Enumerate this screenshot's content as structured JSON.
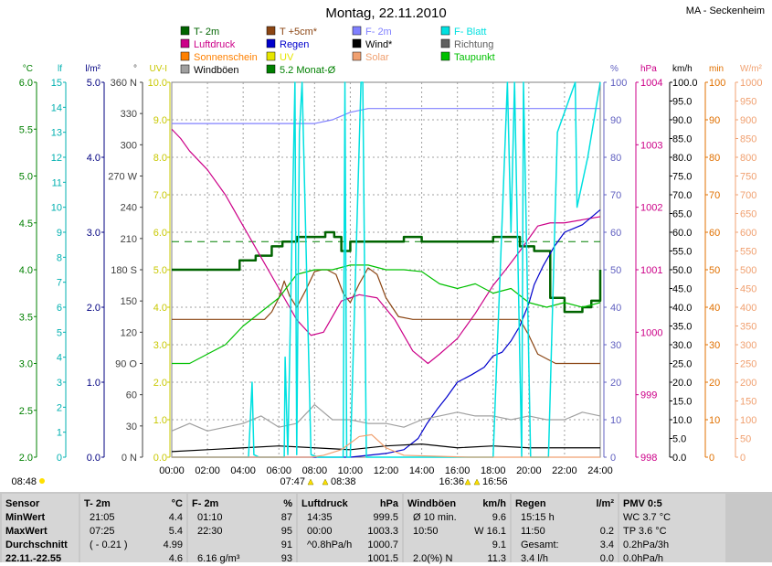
{
  "title": "Montag, 22.11.2010",
  "station": "MA - Seckenheim",
  "legend": [
    {
      "label": "T- 2m",
      "color": "#006400"
    },
    {
      "label": "T +5cm*",
      "color": "#8b4513"
    },
    {
      "label": "F- 2m",
      "color": "#8080ff"
    },
    {
      "label": "F- Blatt",
      "color": "#00e0e0"
    },
    {
      "label": "Luftdruck",
      "color": "#cc0088"
    },
    {
      "label": "Regen",
      "color": "#0000cc"
    },
    {
      "label": "Wind*",
      "color": "#000000"
    },
    {
      "label": "Richtung",
      "color": "#606060"
    },
    {
      "label": "Sonnenschein",
      "color": "#ff8000"
    },
    {
      "label": "UV",
      "color": "#e6e600"
    },
    {
      "label": "Solar",
      "color": "#f0a070"
    },
    {
      "label": "Taupunkt",
      "color": "#00c000"
    },
    {
      "label": "Windböen",
      "color": "#a0a0a0"
    },
    {
      "label": "5.2 Monat-Ø",
      "color": "#008000"
    }
  ],
  "axes": {
    "temp": {
      "unit": "°C",
      "ticks": [
        "6.0",
        "5.5",
        "5.0",
        "4.5",
        "4.0",
        "3.5",
        "3.0",
        "2.5",
        "2.0"
      ],
      "color": "#008000"
    },
    "leaf": {
      "unit": "lf",
      "ticks": [
        "15",
        "14",
        "13",
        "12",
        "11",
        "10",
        "9",
        "8",
        "7",
        "6",
        "5",
        "4",
        "3",
        "2",
        "1",
        "0"
      ],
      "color": "#00b0b0"
    },
    "rain": {
      "unit": "l/m²",
      "ticks": [
        "5.0",
        "4.0",
        "3.0",
        "2.0",
        "1.0",
        "0.0"
      ],
      "color": "#000080"
    },
    "dir": {
      "unit": "°",
      "ticks": [
        "360 N",
        "330",
        "300",
        "270 W",
        "240",
        "210",
        "180 S",
        "150",
        "120",
        "90 O",
        "60",
        "30",
        "0 N"
      ],
      "color": "#404040"
    },
    "uv": {
      "unit": "UV-I",
      "ticks": [
        "10.0",
        "9.0",
        "8.0",
        "7.0",
        "6.0",
        "5.0",
        "4.0",
        "3.0",
        "2.0",
        "1.0",
        "0.0"
      ],
      "color": "#c8c800"
    },
    "hum": {
      "unit": "%",
      "ticks": [
        "100",
        "90",
        "80",
        "70",
        "60",
        "50",
        "40",
        "30",
        "20",
        "10",
        "0"
      ],
      "color": "#6060c0"
    },
    "press": {
      "unit": "hPa",
      "ticks": [
        "1004",
        "1003",
        "1002",
        "1001",
        "1000",
        "999",
        "998"
      ],
      "color": "#cc0088"
    },
    "wind": {
      "unit": "km/h",
      "ticks": [
        "100.0",
        "95.0",
        "90.0",
        "85.0",
        "80.0",
        "75.0",
        "70.0",
        "65.0",
        "60.0",
        "55.0",
        "50.0",
        "45.0",
        "40.0",
        "35.0",
        "30.0",
        "25.0",
        "20.0",
        "15.0",
        "10.0",
        "5.0",
        "0.0"
      ],
      "color": "#000000"
    },
    "sun": {
      "unit": "min",
      "ticks": [
        "100",
        "90",
        "80",
        "70",
        "60",
        "50",
        "40",
        "30",
        "20",
        "10",
        "0"
      ],
      "color": "#e07000"
    },
    "solar": {
      "unit": "W/m²",
      "ticks": [
        "1000",
        "950",
        "900",
        "850",
        "800",
        "750",
        "700",
        "650",
        "600",
        "550",
        "500",
        "450",
        "400",
        "350",
        "300",
        "250",
        "200",
        "150",
        "100",
        "50",
        "0"
      ],
      "color": "#f0a070"
    },
    "x": {
      "ticks": [
        "00:00",
        "02:00",
        "04:00",
        "06:00",
        "08:00",
        "10:00",
        "12:00",
        "14:00",
        "16:00",
        "18:00",
        "20:00",
        "22:00",
        "24:00"
      ]
    }
  },
  "sun_times": {
    "sunrise": "07:47",
    "noon": "08:38",
    "sunset": "16:36",
    "dusk": "16:56",
    "daylen": "08:48"
  },
  "chart_data": {
    "type": "line",
    "x_unit": "hour",
    "series": [
      {
        "name": "T- 2m",
        "unit": "°C",
        "color": "#006400",
        "x": [
          0,
          2.4,
          3.8,
          4.7,
          5.6,
          6.2,
          7.0,
          8.0,
          8.6,
          9.1,
          9.5,
          10.0,
          11.0,
          12.1,
          13.0,
          14.0,
          15.0,
          16.0,
          17.0,
          18.0,
          19.5,
          20.3,
          21.2,
          22.0,
          23.0,
          23.5,
          24.0
        ],
        "y": [
          4.0,
          4.0,
          4.1,
          4.15,
          4.25,
          4.3,
          4.35,
          4.35,
          4.4,
          4.35,
          4.2,
          4.3,
          4.3,
          4.3,
          4.35,
          4.3,
          4.3,
          4.3,
          4.3,
          4.35,
          4.25,
          4.2,
          3.7,
          3.55,
          3.6,
          3.67,
          4.0
        ]
      },
      {
        "name": "T +5cm*",
        "unit": "°C",
        "color": "#8b4513",
        "x": [
          0,
          5.2,
          5.6,
          6.0,
          6.3,
          6.6,
          7.0,
          7.5,
          8.0,
          8.4,
          8.7,
          9.2,
          9.6,
          10.0,
          10.5,
          11.0,
          11.5,
          12.0,
          12.7,
          13.5,
          15,
          17,
          19.5,
          20.0,
          20.5,
          21.5,
          24
        ],
        "y": [
          3.47,
          3.47,
          3.55,
          3.7,
          3.88,
          3.72,
          3.6,
          3.78,
          3.98,
          4.0,
          4.0,
          3.95,
          3.75,
          3.65,
          3.85,
          4.02,
          3.95,
          3.7,
          3.5,
          3.47,
          3.47,
          3.47,
          3.47,
          3.3,
          3.1,
          3.0,
          3.0
        ]
      },
      {
        "name": "F- 2m",
        "unit": "%",
        "color": "#8080ff",
        "x": [
          0,
          2,
          4,
          6,
          8,
          9,
          10,
          11,
          12,
          14,
          16,
          18,
          20,
          22,
          24
        ],
        "y": [
          89,
          89,
          89,
          89,
          89,
          90,
          92,
          93,
          93,
          93,
          93,
          93,
          93,
          93,
          93
        ]
      },
      {
        "name": "Luftdruck",
        "unit": "hPa",
        "color": "#cc0088",
        "x": [
          0,
          0.5,
          1,
          2,
          3,
          4,
          5,
          6,
          7,
          7.8,
          8.5,
          9.5,
          10.5,
          11.5,
          12.5,
          13.5,
          14.35,
          15.0,
          16.0,
          17.0,
          18.0,
          18.7,
          19.5,
          20.5,
          21.2,
          22,
          23,
          24
        ],
        "y": [
          1003.25,
          1003.1,
          1002.9,
          1002.6,
          1002.2,
          1001.7,
          1001.2,
          1000.7,
          1000.2,
          999.95,
          1000.0,
          1000.5,
          1000.6,
          1000.55,
          1000.2,
          999.7,
          999.5,
          999.65,
          999.9,
          1000.3,
          1000.75,
          1001.0,
          1001.3,
          1001.7,
          1001.75,
          1001.75,
          1001.8,
          1001.85
        ]
      },
      {
        "name": "Regen",
        "unit": "l/m²",
        "color": "#0000cc",
        "x": [
          0,
          10,
          12,
          13,
          13.8,
          14.3,
          14.9,
          15.4,
          16.0,
          16.8,
          17.5,
          18.0,
          18.5,
          19.0,
          19.5,
          20.0,
          20.3,
          20.8,
          21.4,
          22.0,
          23.0,
          24.0
        ],
        "y": [
          0,
          0,
          0.05,
          0.1,
          0.25,
          0.45,
          0.65,
          0.8,
          1.0,
          1.1,
          1.2,
          1.35,
          1.4,
          1.55,
          1.75,
          2.05,
          2.3,
          2.55,
          2.8,
          3.0,
          3.1,
          3.3
        ]
      },
      {
        "name": "Wind*",
        "unit": "km/h",
        "color": "#000000",
        "x": [
          0,
          2,
          4,
          6,
          8,
          10,
          12,
          14,
          16,
          18,
          20,
          22,
          24
        ],
        "y": [
          1.5,
          2,
          2.5,
          3,
          2.5,
          2,
          3,
          3.5,
          2.5,
          3,
          2.5,
          2.5,
          2.5
        ]
      },
      {
        "name": "Taupunkt",
        "unit": "°C",
        "color": "#00c000",
        "x": [
          0,
          1,
          2,
          3,
          4,
          5,
          6,
          7,
          8,
          9,
          10,
          11,
          12,
          13,
          14,
          15,
          16,
          17,
          18,
          19,
          20,
          21,
          22,
          23,
          24
        ],
        "y": [
          3.0,
          3.0,
          3.1,
          3.2,
          3.4,
          3.55,
          3.7,
          3.95,
          4.0,
          4.0,
          4.05,
          4.05,
          4.0,
          4.0,
          3.98,
          3.85,
          3.8,
          3.85,
          3.75,
          3.8,
          3.65,
          3.6,
          3.65,
          3.6,
          3.65
        ]
      },
      {
        "name": "Windböen",
        "unit": "km/h",
        "color": "#a0a0a0",
        "x": [
          0,
          1,
          2,
          3,
          4,
          5,
          6,
          7,
          8,
          9,
          10,
          11,
          12,
          13,
          14,
          15,
          16,
          17,
          18,
          19,
          20,
          21,
          22,
          23,
          24
        ],
        "y": [
          7,
          9,
          7,
          8,
          9,
          11,
          8,
          9,
          14,
          10,
          10,
          9,
          9,
          8,
          10,
          11,
          12,
          11,
          11,
          10,
          11,
          10,
          10,
          12,
          11
        ]
      },
      {
        "name": "F- Blatt",
        "unit": "lf",
        "color": "#00e0e0",
        "x": [
          0,
          4.3,
          4.5,
          4.6,
          4.9,
          5.8,
          6.3,
          6.35,
          6.5,
          6.9,
          7.0,
          7.15,
          7.3,
          7.8,
          8.2,
          9.6,
          9.7,
          9.8,
          10.0,
          10.6,
          10.7,
          10.9,
          11.5,
          14,
          16,
          18,
          18.8,
          19.0,
          19.2,
          19.6,
          19.7,
          20.1,
          20.3,
          21.1,
          21.6,
          22.6,
          22.7,
          23.3,
          24
        ],
        "y": [
          0,
          0,
          3,
          0.1,
          0,
          0,
          0,
          4,
          0.1,
          15,
          0.1,
          13,
          15,
          0.1,
          0,
          0,
          15,
          0,
          0,
          15,
          15,
          0,
          0,
          0,
          0,
          0,
          15,
          9,
          15,
          0,
          15,
          0,
          0,
          0,
          13,
          15,
          10,
          12,
          15
        ]
      },
      {
        "name": "Solar",
        "unit": "W/m²",
        "color": "#f0a070",
        "x": [
          0,
          7.8,
          8.5,
          9.5,
          10.5,
          11.2,
          12.0,
          13.0,
          16.6,
          24
        ],
        "y": [
          0,
          0,
          5,
          20,
          55,
          60,
          25,
          5,
          0,
          0
        ]
      }
    ]
  },
  "stats": {
    "sensor": {
      "header": "Sensor",
      "rows": [
        "MinWert",
        "MaxWert",
        "Durchschnitt",
        "22.11.-22.55"
      ]
    },
    "t2m": {
      "header": "T- 2m",
      "unit": "°C",
      "rows": [
        [
          "21:05",
          "4.4"
        ],
        [
          "07:25",
          "5.4"
        ],
        [
          "( - 0.21 )",
          "4.99"
        ],
        [
          "",
          "4.6"
        ]
      ]
    },
    "f2m": {
      "header": "F- 2m",
      "unit": "%",
      "rows": [
        [
          "01:10",
          "87"
        ],
        [
          "22:30",
          "95"
        ],
        [
          "",
          "91"
        ],
        [
          "6.16 g/m³",
          "93"
        ]
      ]
    },
    "press": {
      "header": "Luftdruck",
      "unit": "hPa",
      "rows": [
        [
          "14:35",
          "999.5"
        ],
        [
          "00:00",
          "1003.3"
        ],
        [
          "^0.8hPa/h",
          "1000.7"
        ],
        [
          "",
          "1001.5"
        ]
      ]
    },
    "gust": {
      "header": "Windböen",
      "unit": "km/h",
      "rows": [
        [
          "Ø 10 min.",
          "9.6"
        ],
        [
          "10:50",
          "W 16.1"
        ],
        [
          "",
          "9.1"
        ],
        [
          "2.0(%) N",
          "11.3"
        ]
      ]
    },
    "rain": {
      "header": "Regen",
      "unit": "l/m²",
      "rows": [
        [
          "15:15 h",
          ""
        ],
        [
          "11:50",
          "0.2"
        ],
        [
          "Gesamt:",
          "3.4"
        ],
        [
          "3.4 l/h",
          "0.0"
        ]
      ]
    },
    "pmv": {
      "header": "PMV 0:5",
      "rows": [
        "WC 3.7 °C",
        "TP 3.6 °C",
        "0.2hPa/3h",
        "0.0hPa/h"
      ]
    }
  }
}
